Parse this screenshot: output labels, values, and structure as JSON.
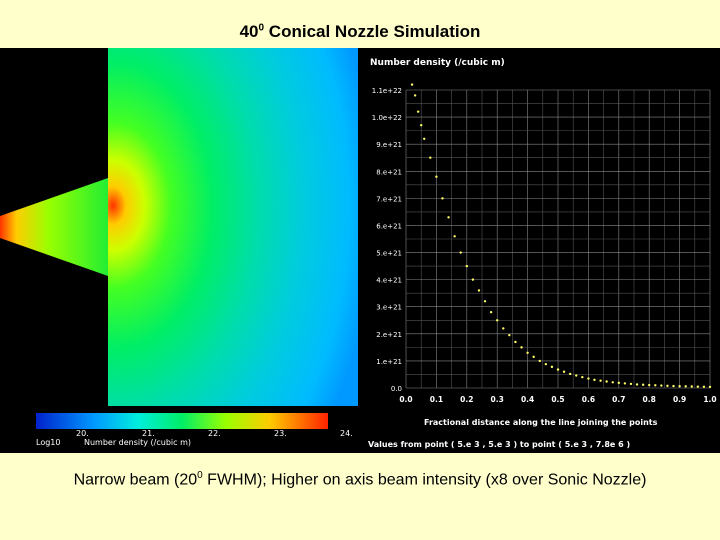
{
  "slide": {
    "title_main": "40",
    "title_sup": "0",
    "title_rest": " Conical Nozzle Simulation",
    "caption_a": "Narrow beam (20",
    "caption_sup": "0",
    "caption_b": " FWHM); Higher on axis beam intensity (x8 over Sonic Nozzle)"
  },
  "simulation": {
    "colorbar_ticks": [
      "20.",
      "21.",
      "22.",
      "23.",
      "24."
    ],
    "colorbar_label_left": "Log10",
    "colorbar_label": "Number density  (/cubic m)",
    "colors": {
      "low": "#0000cc",
      "mid": "#00ff66",
      "high": "#ff3300"
    }
  },
  "chart_data": {
    "type": "scatter",
    "title": "Number density  (/cubic m)",
    "xlabel": "Fractional distance along the line joining the points",
    "footer": "Values from point ( 5.e 3 , 5.e 3 ) to point  ( 5.e 3 , 7.8e 6 )",
    "xlim": [
      0.0,
      1.0
    ],
    "ylim": [
      0.0,
      1.1e+22
    ],
    "x_ticks": [
      "0.0",
      "0.1",
      "0.2",
      "0.3",
      "0.4",
      "0.5",
      "0.6",
      "0.7",
      "0.8",
      "0.9",
      "1.0"
    ],
    "y_ticks": [
      "0.0",
      "1.e+21",
      "2.e+21",
      "3.e+21",
      "4.e+21",
      "5.e+21",
      "6.e+21",
      "7.e+21",
      "8.e+21",
      "9.e+21",
      "1.0e+22",
      "1.1e+22"
    ],
    "grid": true,
    "marker_color": "#ffff66",
    "series": [
      {
        "x": [
          0.02,
          0.03,
          0.04,
          0.05,
          0.06,
          0.08,
          0.1,
          0.12,
          0.14,
          0.16,
          0.18,
          0.2,
          0.22,
          0.24,
          0.26,
          0.28,
          0.3,
          0.32,
          0.34,
          0.36,
          0.38,
          0.4,
          0.42,
          0.44,
          0.46,
          0.48,
          0.5,
          0.52,
          0.54,
          0.56,
          0.58,
          0.6,
          0.62,
          0.64,
          0.66,
          0.68,
          0.7,
          0.72,
          0.74,
          0.76,
          0.78,
          0.8,
          0.82,
          0.84,
          0.86,
          0.88,
          0.9,
          0.92,
          0.94,
          0.96,
          0.98,
          1.0
        ],
        "y": [
          1.12e+22,
          1.08e+22,
          1.02e+22,
          9.7e+21,
          9.2e+21,
          8.5e+21,
          7.8e+21,
          7e+21,
          6.3e+21,
          5.6e+21,
          5e+21,
          4.5e+21,
          4e+21,
          3.6e+21,
          3.2e+21,
          2.8e+21,
          2.5e+21,
          2.2e+21,
          1.95e+21,
          1.7e+21,
          1.5e+21,
          1.3e+21,
          1.15e+21,
          1e+21,
          8.8e+20,
          7.8e+20,
          6.8e+20,
          6e+20,
          5.2e+20,
          4.6e+20,
          4e+20,
          3.5e+20,
          3e+20,
          2.7e+20,
          2.4e+20,
          2.1e+20,
          1.9e+20,
          1.7e+20,
          1.5e+20,
          1.3e+20,
          1.2e+20,
          1.1e+20,
          1e+20,
          9e+19,
          8e+19,
          7e+19,
          6.5e+19,
          6e+19,
          5.5e+19,
          5e+19,
          4.5e+19,
          4e+19
        ]
      }
    ]
  }
}
